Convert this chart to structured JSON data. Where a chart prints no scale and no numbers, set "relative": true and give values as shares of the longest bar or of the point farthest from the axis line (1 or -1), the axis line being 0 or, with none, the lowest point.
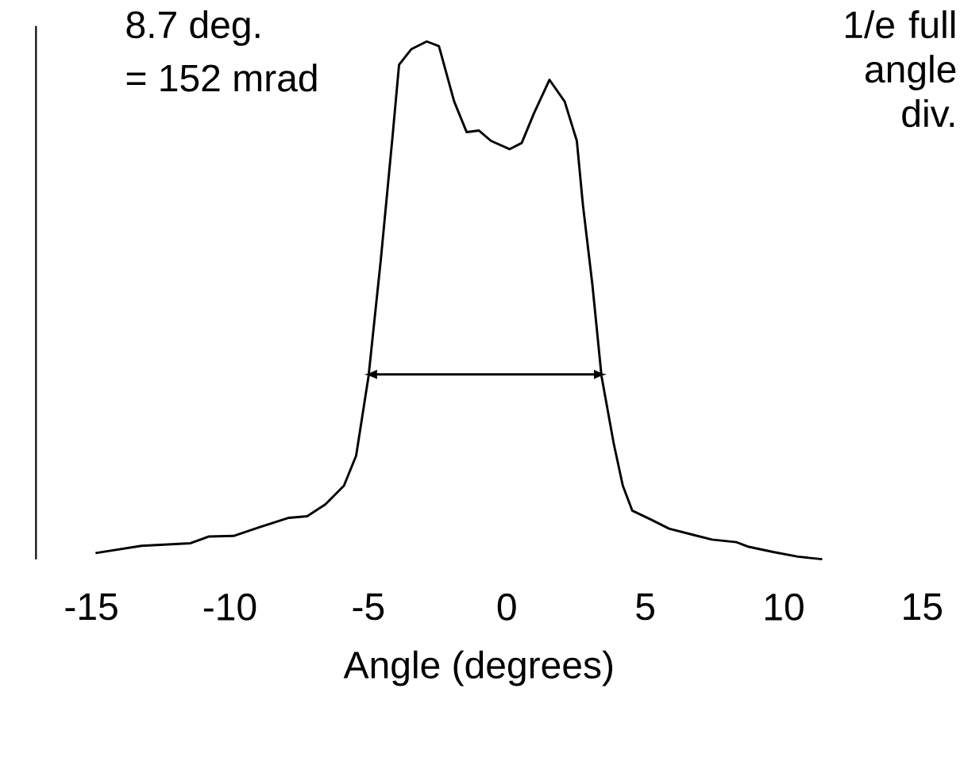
{
  "chart_data": {
    "type": "line",
    "relative": true,
    "xlabel": "Angle (degrees)",
    "xlim": [
      -17,
      15
    ],
    "xticks": [
      -15,
      -10,
      -5,
      0,
      5,
      10,
      15
    ],
    "x": [
      -14.85,
      -13.19,
      -11.42,
      -10.75,
      -9.87,
      -8.98,
      -7.87,
      -7.21,
      -6.55,
      -5.88,
      -5.44,
      -4.99,
      -4.55,
      -4.11,
      -3.89,
      -3.45,
      -2.89,
      -2.45,
      -1.9,
      -1.45,
      -1.01,
      -0.57,
      0.1,
      0.54,
      0.98,
      1.54,
      2.09,
      2.53,
      2.75,
      3.09,
      3.42,
      3.86,
      4.19,
      4.53,
      5.19,
      5.86,
      6.74,
      7.41,
      8.29,
      8.74,
      9.62,
      10.51,
      11.39
    ],
    "series": [
      {
        "color": "#000000",
        "values": [
          0.012,
          0.026,
          0.031,
          0.044,
          0.045,
          0.061,
          0.08,
          0.083,
          0.106,
          0.142,
          0.2,
          0.354,
          0.578,
          0.825,
          0.955,
          0.985,
          1,
          0.991,
          0.884,
          0.825,
          0.828,
          0.808,
          0.792,
          0.804,
          0.861,
          0.926,
          0.884,
          0.808,
          0.684,
          0.531,
          0.354,
          0.224,
          0.142,
          0.094,
          0.077,
          0.059,
          0.047,
          0.038,
          0.033,
          0.024,
          0.014,
          0.005,
          0
        ]
      },
      {
        "type": "line",
        "color": "#000000",
        "x": [
          -4.99,
          3.31
        ],
        "values": [
          0.357,
          0.357
        ]
      }
    ],
    "annotations": [
      "8.7 deg.",
      "= 152 mrad",
      "1/e full angle div."
    ],
    "marker": "none",
    "line_style": "solid"
  }
}
